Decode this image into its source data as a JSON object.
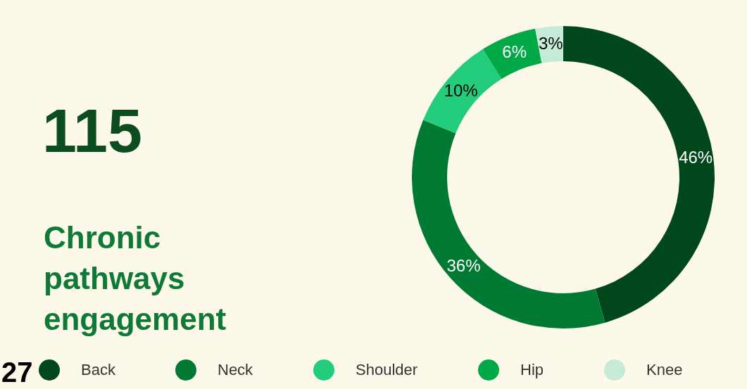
{
  "chart_data": {
    "type": "donut",
    "title": "115",
    "subtitle": "Chronic pathways engagement",
    "categories": [
      "Back",
      "Neck",
      "Shoulder",
      "Hip",
      "Knee"
    ],
    "values": [
      46,
      36,
      10,
      6,
      3
    ],
    "colors": [
      "#00471b",
      "#007a33",
      "#22cc7a",
      "#00a846",
      "#c5ead6"
    ],
    "value_labels": [
      "46%",
      "36%",
      "10%",
      "6%",
      "3%"
    ],
    "legend": "bottom",
    "annotations": [
      "27"
    ]
  }
}
